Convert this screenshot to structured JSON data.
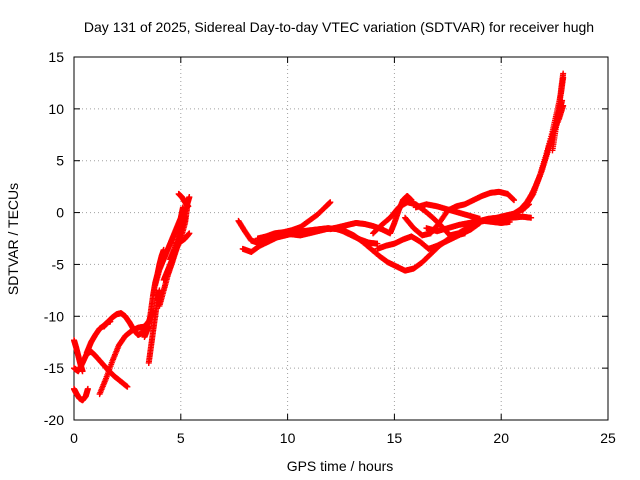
{
  "chart_data": {
    "type": "scatter",
    "title": "Day 131 of 2025, Sidereal Day-to-day VTEC variation (SDTVAR) for receiver hugh",
    "xlabel": "GPS time / hours",
    "ylabel": "SDTVAR / TECUs",
    "xlim": [
      0,
      25
    ],
    "ylim": [
      -20,
      15
    ],
    "xticks": [
      "0",
      "5",
      "10",
      "15",
      "20",
      "25"
    ],
    "yticks": [
      "-20",
      "-15",
      "-10",
      "-5",
      "0",
      "5",
      "10",
      "15"
    ],
    "grid": true,
    "marker": "plus",
    "color": "#ff0000",
    "series": [
      {
        "x": [
          0.0,
          0.2,
          0.4,
          0.6,
          0.8,
          1.0,
          1.3,
          1.6,
          1.9,
          2.2,
          2.5
        ],
        "y": [
          -15.0,
          -15.3,
          -14.5,
          -13.6,
          -13.4,
          -13.8,
          -14.5,
          -15.2,
          -15.8,
          -16.3,
          -16.8
        ]
      },
      {
        "x": [
          0.0,
          0.1,
          0.25,
          0.4,
          0.55,
          0.65
        ],
        "y": [
          -17.0,
          -17.4,
          -17.9,
          -18.1,
          -17.7,
          -17.0
        ]
      },
      {
        "x": [
          0.0,
          0.1,
          0.2,
          0.3,
          0.4
        ],
        "y": [
          -12.3,
          -13.0,
          -13.8,
          -14.6,
          -15.3
        ]
      },
      {
        "x": [
          0.6,
          0.8,
          1.0,
          1.2,
          1.4,
          1.55,
          1.7
        ],
        "y": [
          -13.5,
          -12.5,
          -11.8,
          -11.2,
          -10.9,
          -10.6,
          -10.5
        ]
      },
      {
        "x": [
          1.2,
          1.5,
          1.8,
          2.1,
          2.4,
          2.7,
          3.0,
          3.3,
          3.5,
          3.7
        ],
        "y": [
          -17.5,
          -16.0,
          -14.3,
          -12.8,
          -11.9,
          -11.4,
          -11.1,
          -11.0,
          -10.5,
          -9.5
        ]
      },
      {
        "x": [
          1.4,
          1.6,
          1.8,
          2.0,
          2.2,
          2.4,
          2.6,
          2.8,
          3.0,
          3.2,
          3.4
        ],
        "y": [
          -11.0,
          -10.5,
          -10.1,
          -9.8,
          -9.7,
          -10.0,
          -10.6,
          -11.3,
          -11.8,
          -11.6,
          -11.0
        ]
      },
      {
        "x": [
          3.3,
          3.5,
          3.6,
          3.7,
          3.8,
          3.9,
          4.0,
          4.1,
          4.2
        ],
        "y": [
          -12.0,
          -11.0,
          -9.5,
          -8.0,
          -6.8,
          -6.0,
          -5.0,
          -4.2,
          -3.6
        ]
      },
      {
        "x": [
          3.5,
          3.6,
          3.7,
          3.8,
          3.9,
          4.0
        ],
        "y": [
          -14.5,
          -13.0,
          -11.5,
          -10.0,
          -8.5,
          -7.5
        ]
      },
      {
        "x": [
          3.8,
          4.0,
          4.2,
          4.4,
          4.6,
          4.8,
          5.0,
          5.1
        ],
        "y": [
          -7.0,
          -5.5,
          -4.5,
          -3.5,
          -2.5,
          -1.5,
          -0.5,
          0.5
        ]
      },
      {
        "x": [
          4.0,
          4.2,
          4.4,
          4.6,
          4.8,
          5.0,
          5.2
        ],
        "y": [
          -9.0,
          -7.5,
          -6.0,
          -4.8,
          -3.5,
          -2.0,
          -0.5
        ]
      },
      {
        "x": [
          4.2,
          4.4,
          4.6,
          4.8,
          5.0,
          5.2,
          5.3
        ],
        "y": [
          -6.5,
          -5.5,
          -4.5,
          -3.5,
          -2.5,
          -1.0,
          0.5
        ]
      },
      {
        "x": [
          4.5,
          4.7,
          4.9,
          5.1,
          5.3,
          5.4
        ],
        "y": [
          -4.5,
          -3.5,
          -2.0,
          -0.5,
          0.8,
          1.5
        ]
      },
      {
        "x": [
          4.8,
          5.0,
          5.2,
          5.4
        ],
        "y": [
          -3.0,
          -2.8,
          -2.5,
          -2.0
        ]
      },
      {
        "x": [
          4.9,
          5.05,
          5.2,
          5.35
        ],
        "y": [
          1.8,
          1.5,
          1.0,
          0.6
        ]
      },
      {
        "x": [
          7.7,
          8.0,
          8.3,
          8.6,
          9.0,
          9.4,
          9.8,
          10.2,
          10.6,
          11.0,
          11.4,
          11.8,
          12.2,
          12.6,
          13.0,
          13.4,
          13.8,
          14.2
        ],
        "y": [
          -0.8,
          -1.8,
          -2.7,
          -2.9,
          -2.5,
          -2.2,
          -2.0,
          -2.1,
          -2.2,
          -2.0,
          -1.8,
          -1.6,
          -1.5,
          -1.8,
          -2.2,
          -2.6,
          -2.9,
          -3.0
        ]
      },
      {
        "x": [
          7.9,
          8.3,
          8.7,
          9.1,
          9.5,
          9.9,
          10.3,
          10.7,
          11.1,
          11.5,
          11.9,
          12.3,
          12.7,
          13.1,
          13.5,
          13.9,
          14.3,
          14.7,
          15.1,
          15.5,
          15.9,
          16.3,
          16.7,
          17.1,
          17.5,
          17.9,
          18.3
        ],
        "y": [
          -3.5,
          -3.8,
          -3.2,
          -2.8,
          -2.4,
          -2.2,
          -2.0,
          -1.8,
          -1.7,
          -1.6,
          -1.5,
          -1.6,
          -1.8,
          -2.2,
          -2.8,
          -3.5,
          -4.2,
          -4.8,
          -5.2,
          -5.6,
          -5.4,
          -4.8,
          -4.0,
          -3.2,
          -2.6,
          -2.2,
          -2.0
        ]
      },
      {
        "x": [
          8.6,
          9.0,
          9.4,
          9.8,
          10.2,
          10.6,
          11.0,
          11.4,
          11.8,
          12.0
        ],
        "y": [
          -2.5,
          -2.3,
          -2.0,
          -1.9,
          -1.7,
          -1.4,
          -0.8,
          -0.2,
          0.6,
          1.0
        ]
      },
      {
        "x": [
          12.0,
          12.4,
          12.8,
          13.2,
          13.6,
          14.0,
          14.4,
          14.8,
          15.0,
          15.2,
          15.4,
          15.6,
          15.8
        ],
        "y": [
          -1.6,
          -1.4,
          -1.2,
          -1.0,
          -1.1,
          -1.3,
          -1.6,
          -2.0,
          -1.0,
          0.2,
          1.2,
          1.6,
          1.2
        ]
      },
      {
        "x": [
          14.0,
          14.4,
          14.8,
          15.2,
          15.6,
          16.0,
          16.4,
          16.8,
          17.2,
          17.6,
          18.0,
          18.4,
          18.8,
          19.2,
          19.6,
          20.0,
          20.4
        ],
        "y": [
          -2.0,
          -1.2,
          -0.5,
          0.5,
          1.0,
          0.8,
          0.2,
          -0.5,
          -1.3,
          -2.2,
          -2.0,
          -1.5,
          -1.0,
          -0.8,
          -0.9,
          -1.0,
          -0.9
        ]
      },
      {
        "x": [
          14.2,
          14.6,
          15.0,
          15.4,
          15.8,
          16.2,
          16.6,
          17.0,
          17.4,
          17.8,
          18.2,
          18.6,
          19.0
        ],
        "y": [
          -3.5,
          -3.2,
          -3.0,
          -2.6,
          -2.3,
          -2.8,
          -3.5,
          -3.2,
          -2.8,
          -2.4,
          -2.0,
          -1.6,
          -1.0
        ]
      },
      {
        "x": [
          15.5,
          15.9,
          16.3,
          16.7,
          17.1,
          17.5,
          17.9,
          18.3,
          18.7,
          19.1,
          19.5,
          19.9,
          20.3,
          20.6
        ],
        "y": [
          -0.5,
          -1.5,
          -2.2,
          -2.0,
          -1.0,
          0.2,
          0.6,
          0.8,
          1.2,
          1.6,
          1.9,
          2.0,
          1.8,
          1.2
        ]
      },
      {
        "x": [
          16.0,
          16.5,
          17.0,
          17.5,
          18.0,
          18.5,
          19.0
        ],
        "y": [
          0.5,
          0.8,
          0.6,
          0.3,
          0.0,
          -0.3,
          -0.6
        ]
      },
      {
        "x": [
          16.5,
          17.0,
          17.5,
          18.0,
          18.5,
          19.0,
          19.5,
          20.0,
          20.5,
          21.0,
          21.4
        ],
        "y": [
          -1.5,
          -1.8,
          -1.5,
          -1.2,
          -1.0,
          -0.8,
          -0.6,
          -0.6,
          -0.5,
          -0.4,
          -0.5
        ]
      },
      {
        "x": [
          19.0,
          19.4,
          19.8,
          20.2,
          20.6,
          21.0,
          21.3
        ],
        "y": [
          -0.8,
          -0.6,
          -0.5,
          -0.3,
          -0.1,
          0.3,
          0.8
        ]
      },
      {
        "x": [
          20.0,
          20.3,
          20.6,
          20.9,
          21.2,
          21.5,
          21.8,
          22.1,
          22.4,
          22.7,
          22.9
        ],
        "y": [
          -0.8,
          -0.5,
          -0.1,
          0.3,
          0.8,
          1.8,
          3.5,
          5.5,
          7.5,
          9.0,
          10.3
        ]
      },
      {
        "x": [
          20.6,
          20.9,
          21.2,
          21.5,
          21.8,
          22.1,
          22.4,
          22.6,
          22.8,
          22.9
        ],
        "y": [
          -0.3,
          0.3,
          1.0,
          2.0,
          3.5,
          5.5,
          7.8,
          9.6,
          11.5,
          13.0
        ]
      },
      {
        "x": [
          21.0,
          21.3,
          21.6,
          21.9,
          22.2,
          22.5,
          22.7,
          22.85
        ],
        "y": [
          0.2,
          1.2,
          2.5,
          4.0,
          6.0,
          8.0,
          9.5,
          10.8
        ]
      },
      {
        "x": [
          22.4,
          22.55,
          22.7,
          22.8,
          22.9
        ],
        "y": [
          6.0,
          8.0,
          10.0,
          11.8,
          13.4
        ]
      }
    ]
  }
}
